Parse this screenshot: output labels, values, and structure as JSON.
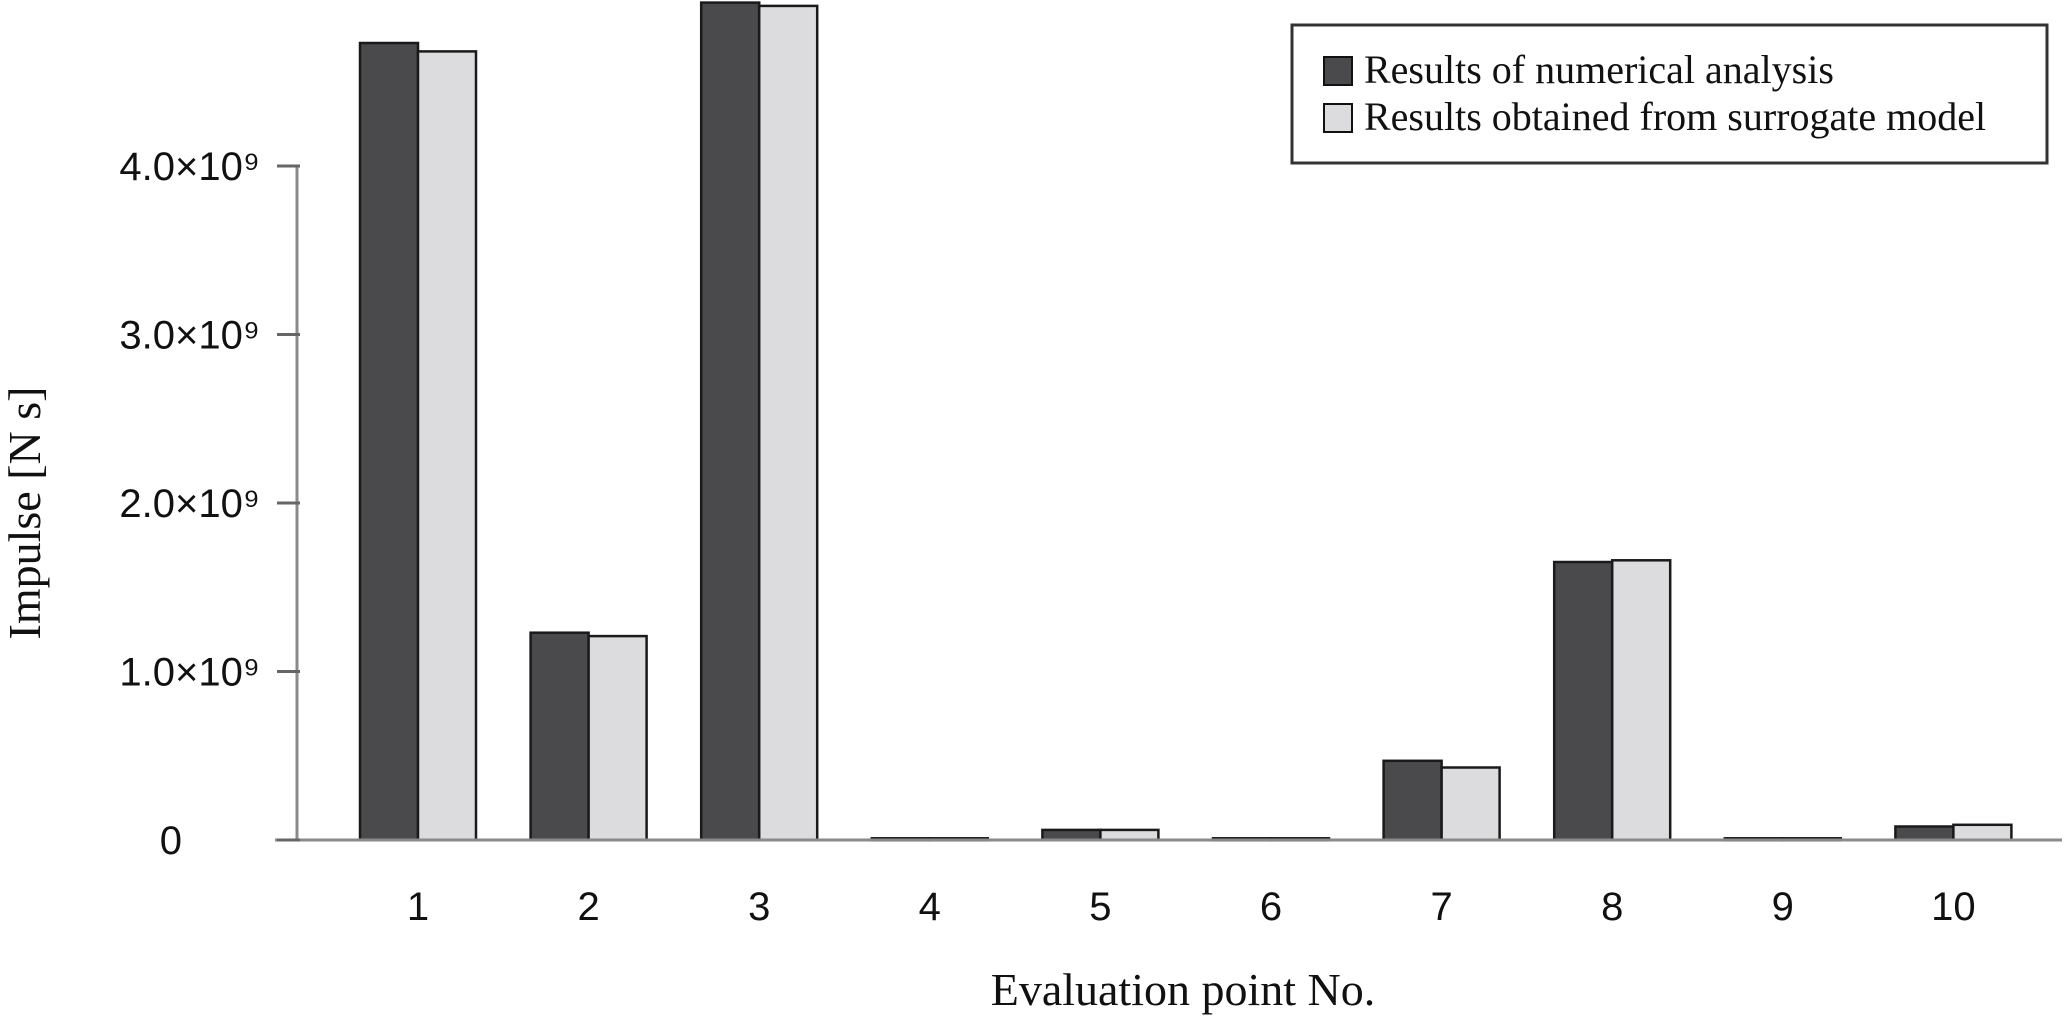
{
  "chart_data": {
    "type": "bar",
    "categories": [
      "1",
      "2",
      "3",
      "4",
      "5",
      "6",
      "7",
      "8",
      "9",
      "10"
    ],
    "series": [
      {
        "name": "Results of numerical analysis",
        "color": "#4a4a4d",
        "values": [
          4730000000,
          1230000000,
          4970000000,
          10000000,
          60000000,
          10000000,
          470000000,
          1650000000,
          10000000,
          80000000
        ]
      },
      {
        "name": "Results obtained from surrogate model",
        "color": "#dcdcdf",
        "values": [
          4680000000,
          1210000000,
          4950000000,
          10000000,
          60000000,
          10000000,
          430000000,
          1660000000,
          10000000,
          90000000
        ]
      }
    ],
    "ylim": [
      0,
      5000000000
    ],
    "yticks": [
      {
        "value": 0,
        "label": "0"
      },
      {
        "value": 1000000000,
        "label": "1.0×10⁹"
      },
      {
        "value": 2000000000,
        "label": "2.0×10⁹"
      },
      {
        "value": 3000000000,
        "label": "3.0×10⁹"
      },
      {
        "value": 4000000000,
        "label": "4.0×10⁹"
      }
    ],
    "xlabel": "Evaluation point No.",
    "ylabel": "Impulse [N s]",
    "grid": false,
    "legend_position": "top-right"
  }
}
